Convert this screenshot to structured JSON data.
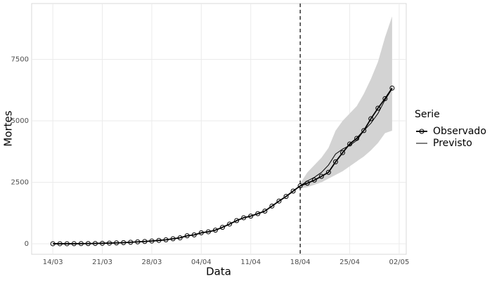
{
  "chart_data": {
    "type": "line",
    "x_label": "Data",
    "y_label": "Mortes",
    "legend_title": "Serie",
    "legend": "right",
    "grid": true,
    "x": [
      "14/03",
      "15/03",
      "16/03",
      "17/03",
      "18/03",
      "19/03",
      "20/03",
      "21/03",
      "22/03",
      "23/03",
      "24/03",
      "25/03",
      "26/03",
      "27/03",
      "28/03",
      "29/03",
      "30/03",
      "31/03",
      "01/04",
      "02/04",
      "03/04",
      "04/04",
      "05/04",
      "06/04",
      "07/04",
      "08/04",
      "09/04",
      "10/04",
      "11/04",
      "12/04",
      "13/04",
      "14/04",
      "15/04",
      "16/04",
      "17/04",
      "18/04",
      "19/04",
      "20/04",
      "21/04",
      "22/04",
      "23/04",
      "24/04",
      "25/04",
      "26/04",
      "27/04",
      "28/04",
      "29/04",
      "30/04",
      "01/05"
    ],
    "series": [
      {
        "name": "Observado",
        "color": "#000000",
        "markers": true,
        "values": [
          0,
          0,
          0,
          1,
          4,
          6,
          11,
          18,
          25,
          34,
          46,
          59,
          77,
          92,
          111,
          136,
          159,
          201,
          240,
          324,
          359,
          445,
          486,
          553,
          667,
          800,
          941,
          1057,
          1124,
          1223,
          1328,
          1532,
          1736,
          1924,
          2141,
          2354,
          2462,
          2587,
          2741,
          2906,
          3331,
          3704,
          4057,
          4286,
          4603,
          5083,
          5513,
          5901,
          6329
        ]
      },
      {
        "name": "Previsto",
        "color": "#000000",
        "markers": false,
        "values": [
          null,
          null,
          null,
          null,
          null,
          null,
          null,
          null,
          null,
          null,
          null,
          null,
          null,
          null,
          null,
          null,
          null,
          null,
          null,
          null,
          null,
          null,
          null,
          null,
          null,
          null,
          null,
          null,
          null,
          null,
          null,
          null,
          null,
          null,
          null,
          2354,
          2550,
          2700,
          2900,
          3200,
          3650,
          3850,
          4000,
          4200,
          4600,
          4900,
          5300,
          5850,
          6300
        ]
      }
    ],
    "band_color": "#d3d3d3",
    "band_lower": [
      null,
      null,
      null,
      null,
      null,
      null,
      null,
      null,
      null,
      null,
      null,
      null,
      null,
      null,
      null,
      null,
      null,
      null,
      null,
      null,
      null,
      null,
      null,
      null,
      null,
      null,
      null,
      null,
      null,
      null,
      null,
      null,
      null,
      null,
      null,
      2250,
      2300,
      2400,
      2500,
      2650,
      2800,
      2950,
      3150,
      3350,
      3550,
      3800,
      4100,
      4500,
      4600
    ],
    "band_upper": [
      null,
      null,
      null,
      null,
      null,
      null,
      null,
      null,
      null,
      null,
      null,
      null,
      null,
      null,
      null,
      null,
      null,
      null,
      null,
      null,
      null,
      null,
      null,
      null,
      null,
      null,
      null,
      null,
      null,
      null,
      null,
      null,
      null,
      null,
      null,
      2450,
      2900,
      3200,
      3500,
      3900,
      4600,
      5000,
      5300,
      5600,
      6100,
      6700,
      7400,
      8400,
      9250
    ],
    "vline": "18/04",
    "xlim": [
      "11/03",
      "03/05"
    ],
    "xticks": [
      "14/03",
      "21/03",
      "28/03",
      "04/04",
      "11/04",
      "18/04",
      "25/04",
      "02/05"
    ],
    "ylim": [
      -430,
      9770
    ],
    "yticks": [
      0,
      2500,
      5000,
      7500
    ]
  }
}
